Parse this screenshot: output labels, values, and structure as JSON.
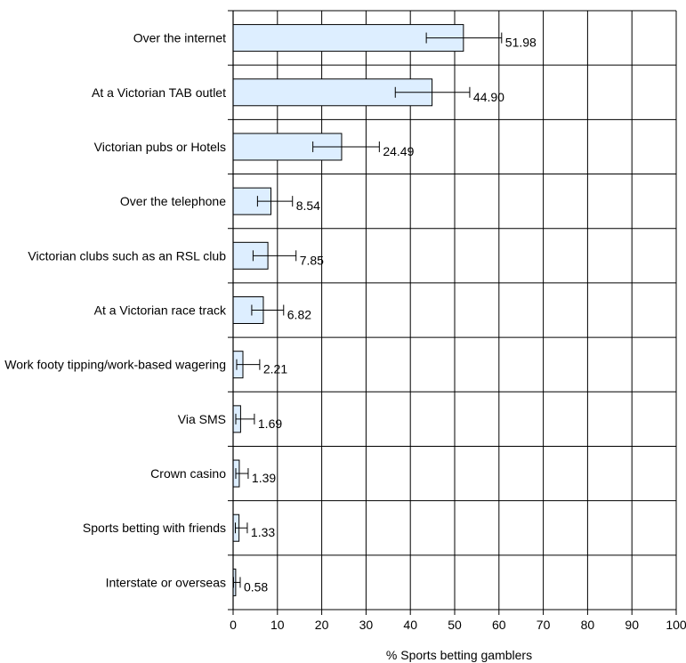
{
  "chart_data": {
    "type": "bar",
    "orientation": "horizontal",
    "categories": [
      "Over the internet",
      "At a Victorian TAB outlet",
      "Victorian pubs or Hotels",
      "Over the telephone",
      "Victorian clubs such as an RSL club",
      "At a Victorian race track",
      "Work footy tipping/work-based wagering",
      "Via SMS",
      "Crown casino",
      "Sports betting with friends",
      "Interstate or overseas"
    ],
    "values": [
      51.98,
      44.9,
      24.49,
      8.54,
      7.85,
      6.82,
      2.21,
      1.69,
      1.39,
      1.33,
      0.58
    ],
    "value_labels": [
      "51.98",
      "44.90",
      "24.49",
      "8.54",
      "7.85",
      "6.82",
      "2.21",
      "1.69",
      "1.39",
      "1.33",
      "0.58"
    ],
    "error_low": [
      43.6,
      36.6,
      18.0,
      5.5,
      4.5,
      4.2,
      0.8,
      0.6,
      0.6,
      0.5,
      0.1
    ],
    "error_high": [
      60.6,
      53.4,
      33.0,
      13.4,
      14.2,
      11.4,
      6.0,
      4.8,
      3.4,
      3.2,
      1.6
    ],
    "xlabel": "% Sports betting gamblers",
    "xlim": [
      0,
      100
    ],
    "xticks": [
      0,
      10,
      20,
      30,
      40,
      50,
      60,
      70,
      80,
      90,
      100
    ],
    "grid": true,
    "colors": {
      "bar_fill": "#ddeeff",
      "bar_stroke": "#000000",
      "grid": "#000000"
    }
  }
}
